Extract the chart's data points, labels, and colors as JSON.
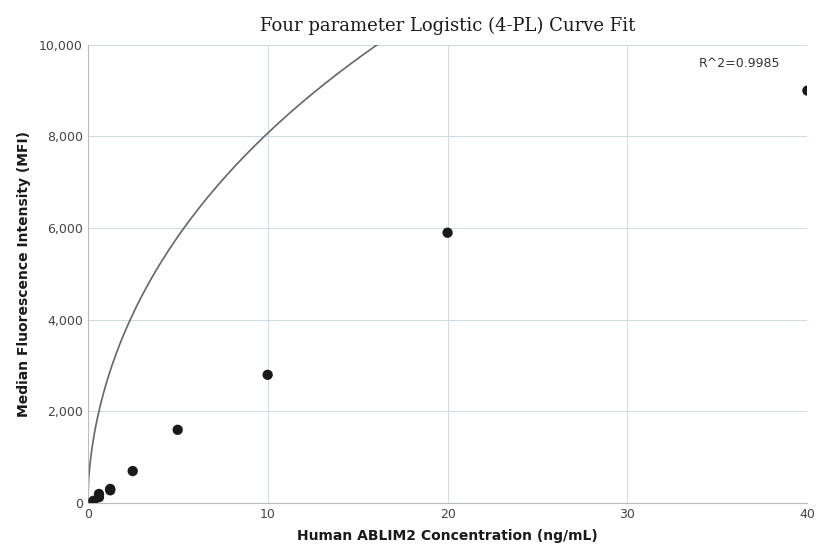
{
  "title": "Four parameter Logistic (4-PL) Curve Fit",
  "xlabel": "Human ABLIM2 Concentration (ng/mL)",
  "ylabel": "Median Fluorescence Intensity (MFI)",
  "scatter_x": [
    0.313,
    0.625,
    0.625,
    1.25,
    1.25,
    2.5,
    5.0,
    10.0,
    20.0,
    40.0
  ],
  "scatter_y": [
    50,
    130,
    200,
    280,
    310,
    700,
    1600,
    2800,
    5900,
    9000
  ],
  "xlim": [
    0,
    40
  ],
  "ylim": [
    0,
    10000
  ],
  "yticks": [
    0,
    2000,
    4000,
    6000,
    8000,
    10000
  ],
  "xticks": [
    0,
    10,
    20,
    30,
    40
  ],
  "r_squared": "R^2=0.9985",
  "scatter_color": "#1a1a1a",
  "scatter_size": 55,
  "line_color": "#666666",
  "line_width": 1.2,
  "grid_color": "#ccd9e8",
  "background_color": "#ffffff",
  "title_fontsize": 13,
  "label_fontsize": 10,
  "tick_fontsize": 9,
  "annotation_fontsize": 9,
  "4pl_A": 0.0,
  "4pl_B": 0.55,
  "4pl_C": 200.0,
  "4pl_D": 50000.0
}
